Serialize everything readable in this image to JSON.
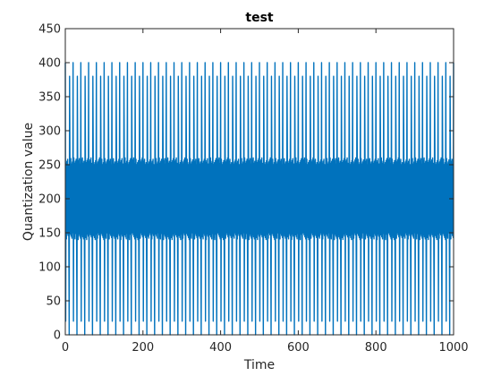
{
  "chart_data": {
    "type": "line",
    "title": "test",
    "xlabel": "Time",
    "ylabel": "Quantization value",
    "xlim": [
      0,
      1000
    ],
    "ylim": [
      0,
      450
    ],
    "grid": false,
    "x_ticks": [
      "0",
      "200",
      "400",
      "600",
      "800",
      "1000"
    ],
    "y_ticks": [
      "0",
      "50",
      "100",
      "150",
      "200",
      "250",
      "300",
      "350",
      "400",
      "450"
    ],
    "series": [
      {
        "color": "#0072BD",
        "signal": {
          "samples": 1000,
          "center": 200,
          "amplitude": 200,
          "dense_period": 2,
          "spike_period": 20,
          "inner_band": [
            140,
            260
          ]
        }
      }
    ]
  }
}
